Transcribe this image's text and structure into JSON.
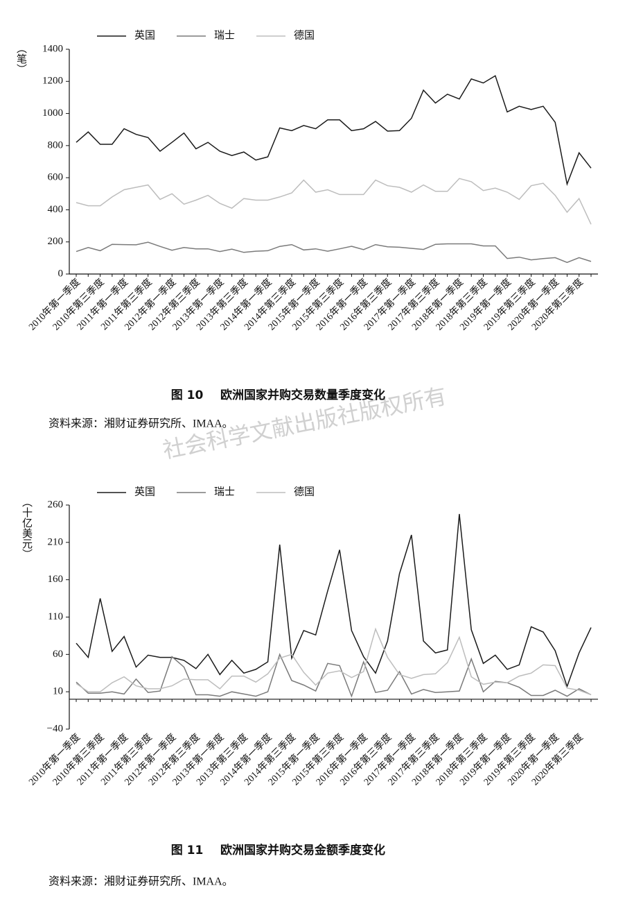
{
  "chart_data": [
    {
      "type": "line",
      "figure_label": "图 10",
      "title": "欧洲国家并购交易数量季度变化",
      "source": "资料来源：湘财证券研究所、IMAA。",
      "y_label": "（笔）",
      "categories": [
        "2010年第一季度",
        null,
        "2010年第三季度",
        null,
        "2011年第一季度",
        null,
        "2011年第三季度",
        null,
        "2012年第一季度",
        null,
        "2012年第三季度",
        null,
        "2013年第一季度",
        null,
        "2013年第三季度",
        null,
        "2014年第一季度",
        null,
        "2014年第三季度",
        null,
        "2015年第一季度",
        null,
        "2015年第三季度",
        null,
        "2016年第一季度",
        null,
        "2016年第三季度",
        null,
        "2017年第一季度",
        null,
        "2017年第三季度",
        null,
        "2018年第一季度",
        null,
        "2018年第三季度",
        null,
        "2019年第一季度",
        null,
        "2019年第三季度",
        null,
        "2020年第一季度",
        null,
        "2020年第三季度",
        null
      ],
      "series": [
        {
          "name": "英国",
          "color": "#1a1a1a",
          "values": [
            820,
            885,
            808,
            808,
            905,
            870,
            850,
            765,
            820,
            878,
            780,
            820,
            765,
            738,
            760,
            710,
            730,
            910,
            893,
            925,
            905,
            960,
            960,
            893,
            905,
            950,
            890,
            893,
            970,
            1145,
            1065,
            1120,
            1090,
            1215,
            1190,
            1235,
            1010,
            1045,
            1025,
            1045,
            945,
            560,
            755,
            660
          ]
        },
        {
          "name": "瑞士",
          "color": "#7a7a7a",
          "values": [
            140,
            165,
            145,
            185,
            183,
            182,
            198,
            172,
            148,
            165,
            157,
            157,
            140,
            155,
            135,
            142,
            145,
            172,
            183,
            150,
            157,
            142,
            157,
            173,
            152,
            183,
            170,
            167,
            160,
            153,
            185,
            188,
            188,
            188,
            175,
            175,
            97,
            105,
            88,
            96,
            102,
            72,
            102,
            78
          ]
        },
        {
          "name": "德国",
          "color": "#bdbdbd",
          "values": [
            445,
            425,
            425,
            480,
            525,
            540,
            555,
            465,
            500,
            435,
            460,
            490,
            440,
            410,
            470,
            460,
            460,
            480,
            505,
            585,
            510,
            525,
            495,
            495,
            495,
            585,
            550,
            540,
            510,
            555,
            515,
            515,
            595,
            575,
            520,
            535,
            510,
            465,
            550,
            565,
            490,
            385,
            470,
            310
          ]
        }
      ],
      "ylim": [
        0,
        1400
      ],
      "yticks": [
        0,
        200,
        400,
        600,
        800,
        1000,
        1200,
        1400
      ],
      "grid": false
    },
    {
      "type": "line",
      "figure_label": "图 11",
      "title": "欧洲国家并购交易金额季度变化",
      "source": "资料来源：湘财证券研究所、IMAA。",
      "y_label": "（十亿美元）",
      "categories": [
        "2010年第一季度",
        null,
        "2010年第三季度",
        null,
        "2011年第一季度",
        null,
        "2011年第三季度",
        null,
        "2012年第一季度",
        null,
        "2012年第三季度",
        null,
        "2013年第一季度",
        null,
        "2013年第三季度",
        null,
        "2014年第一季度",
        null,
        "2014年第三季度",
        null,
        "2015年第一季度",
        null,
        "2015年第三季度",
        null,
        "2016年第一季度",
        null,
        "2016年第三季度",
        null,
        "2017年第一季度",
        null,
        "2017年第三季度",
        null,
        "2018年第一季度",
        null,
        "2018年第三季度",
        null,
        "2019年第一季度",
        null,
        "2019年第三季度",
        null,
        "2020年第一季度",
        null,
        "2020年第三季度",
        null
      ],
      "series": [
        {
          "name": "英国",
          "color": "#1a1a1a",
          "values": [
            75,
            56,
            135,
            64,
            84,
            43,
            59,
            56,
            56,
            52,
            41,
            60,
            33,
            52,
            35,
            40,
            50,
            207,
            55,
            92,
            86,
            145,
            200,
            92,
            57,
            35,
            78,
            168,
            220,
            78,
            62,
            66,
            248,
            93,
            48,
            59,
            40,
            46,
            97,
            90,
            65,
            17,
            62,
            96
          ]
        },
        {
          "name": "瑞士",
          "color": "#7a7a7a",
          "values": [
            23,
            8,
            8,
            10,
            7,
            27,
            9,
            11,
            57,
            43,
            6,
            6,
            4,
            10,
            7,
            4,
            10,
            60,
            25,
            19,
            11,
            48,
            45,
            4,
            50,
            9,
            12,
            37,
            7,
            13,
            9,
            10,
            11,
            54,
            10,
            24,
            22,
            16,
            5,
            5,
            12,
            4,
            14,
            6
          ]
        },
        {
          "name": "德国",
          "color": "#bdbdbd",
          "values": [
            21,
            10,
            10,
            22,
            30,
            18,
            14,
            14,
            18,
            27,
            26,
            26,
            14,
            31,
            31,
            23,
            34,
            55,
            60,
            36,
            19,
            35,
            38,
            29,
            37,
            94,
            56,
            33,
            28,
            33,
            34,
            49,
            83,
            30,
            20,
            23,
            22,
            31,
            35,
            46,
            45,
            15,
            12,
            6
          ]
        }
      ],
      "ylim": [
        -40,
        260
      ],
      "yticks": [
        {
          "value": -40,
          "label": "−40"
        },
        10,
        60,
        110,
        160,
        210,
        260
      ],
      "grid": false
    }
  ],
  "watermark": "社会科学文献出版社版权所有"
}
